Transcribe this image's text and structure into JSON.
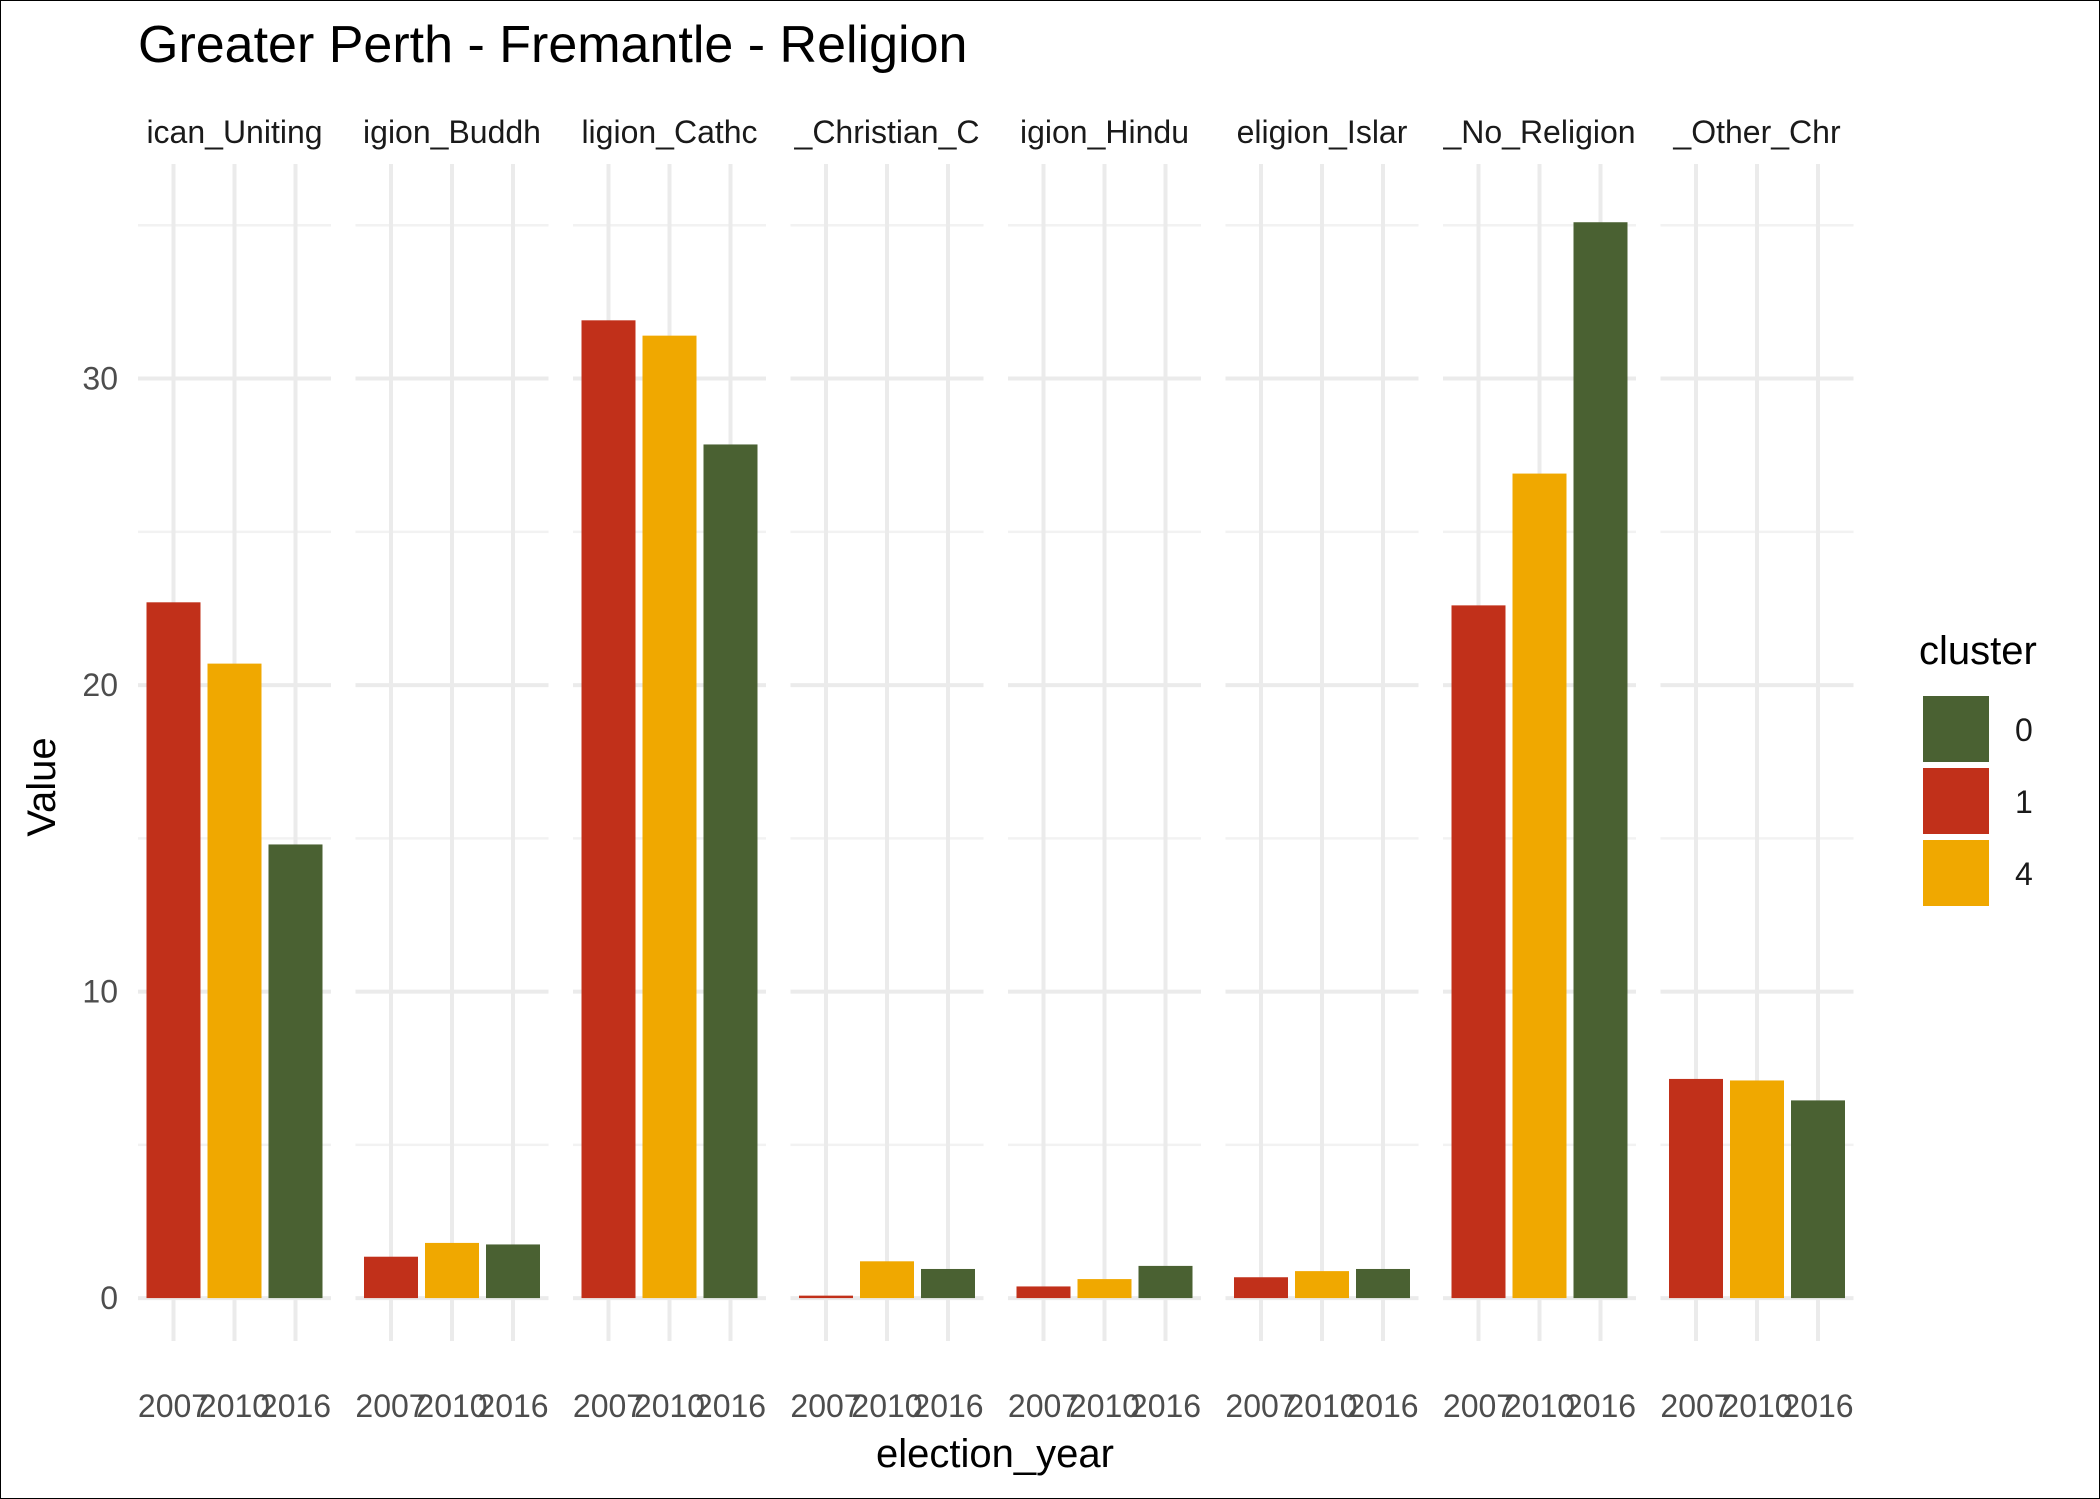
{
  "chart_data": {
    "type": "bar",
    "title": "Greater Perth - Fremantle - Religion",
    "xlabel": "election_year",
    "ylabel": "Value",
    "ylim": [
      -1.4,
      37.0
    ],
    "yticks": [
      0,
      10,
      20,
      30
    ],
    "categories": [
      "2007",
      "2010",
      "2016"
    ],
    "facets": [
      {
        "label": "ican_Uniting",
        "values": [
          22.7,
          20.7,
          14.8
        ]
      },
      {
        "label": "igion_Buddh",
        "values": [
          1.35,
          1.8,
          1.75
        ]
      },
      {
        "label": "ligion_Cathc",
        "values": [
          31.9,
          31.4,
          27.85
        ]
      },
      {
        "label": "_Christian_C",
        "values": [
          0.08,
          1.2,
          0.95
        ]
      },
      {
        "label": "igion_Hindu",
        "values": [
          0.38,
          0.62,
          1.05
        ]
      },
      {
        "label": "eligion_Islar",
        "values": [
          0.68,
          0.88,
          0.95
        ]
      },
      {
        "label": "_No_Religion",
        "values": [
          22.6,
          26.9,
          35.1
        ]
      },
      {
        "label": "_Other_Chr",
        "values": [
          7.15,
          7.1,
          6.45
        ]
      }
    ],
    "bar_clusters": [
      "1",
      "4",
      "0"
    ],
    "legend": {
      "title": "cluster",
      "position": "right",
      "entries": [
        {
          "label": "0",
          "color": "#4a6132"
        },
        {
          "label": "1",
          "color": "#c1301a"
        },
        {
          "label": "4",
          "color": "#f0a800"
        }
      ]
    },
    "colors": {
      "0": "#4a6132",
      "1": "#c1301a",
      "4": "#f0a800"
    }
  }
}
